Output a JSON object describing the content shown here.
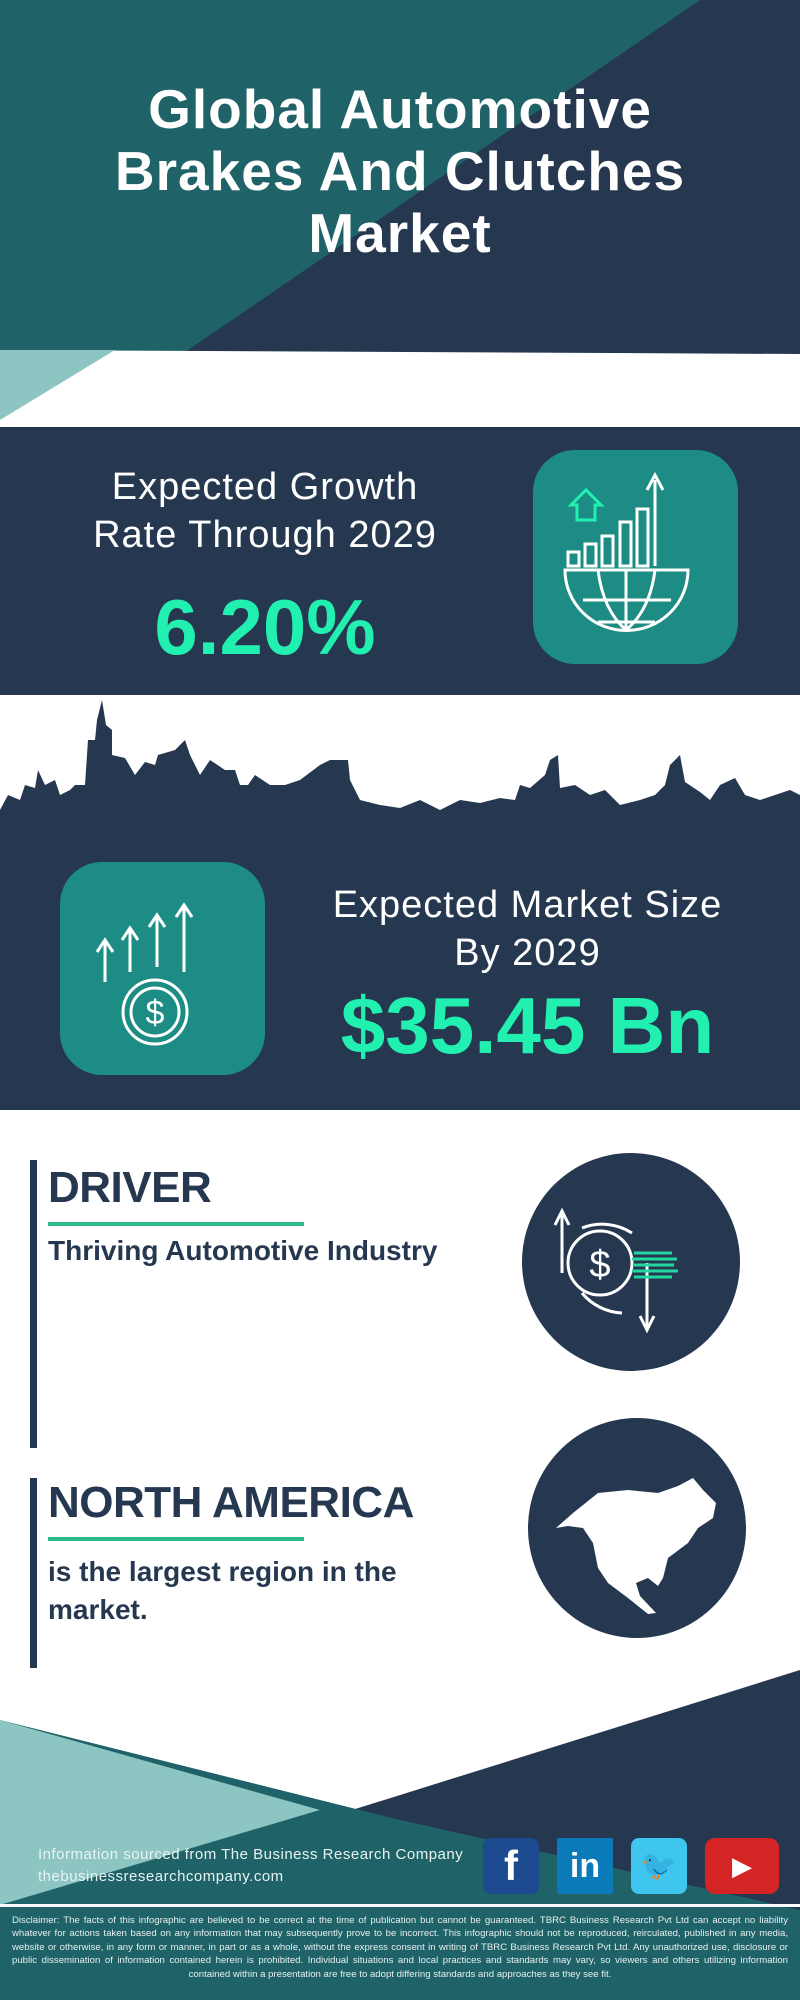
{
  "title": {
    "line1": "Global Automotive",
    "line2": "Brakes And Clutches",
    "line3": "Market"
  },
  "growth": {
    "label_line1": "Expected Growth",
    "label_line2": "Rate Through 2029",
    "value": "6.20%",
    "icon": "globe-growth-chart-icon"
  },
  "market_size": {
    "label_line1": "Expected Market Size",
    "label_line2": "By 2029",
    "value": "$35.45 Bn",
    "icon": "money-growth-arrows-icon"
  },
  "driver": {
    "heading": "DRIVER",
    "text": "Thriving Automotive Industry",
    "icon": "dollar-exchange-icon"
  },
  "region": {
    "heading": "NORTH AMERICA",
    "text_line1": "is the largest region in the",
    "text_line2": "market.",
    "icon": "north-america-map-icon"
  },
  "footer": {
    "source": "Information sourced from The Business Research Company",
    "website": "thebusinessresearchcompany.com",
    "social": [
      {
        "name": "facebook",
        "glyph": "f",
        "color": "#1b4a8f"
      },
      {
        "name": "linkedin",
        "glyph": "in",
        "color": "#0a7ab8"
      },
      {
        "name": "twitter",
        "glyph": "🐦",
        "color": "#3ec6ef"
      },
      {
        "name": "youtube",
        "glyph": "▶",
        "color": "#d52424"
      }
    ],
    "disclaimer": "Disclaimer: The facts of this infographic are believed to be correct at the time of publication but cannot be guaranteed. TBRC Business Research Pvt Ltd can accept no liability whatever for actions taken based on any information that may subsequently prove to be incorrect. This infographic should not be reproduced, reirculated, published in any media, website or otherwise, in any form or manner, in part or as a whole, without the express consent in writing of TBRC Business Research Pvt Ltd. Any unauthorized use, disclosure or public dissemination of information contained herein is prohibited. Individual situations and local practices and standards may vary, so viewers and others utilizing information contained within a presentation are free to adopt differing standards and approaches as they see fit."
  },
  "colors": {
    "navy": "#253850",
    "teal": "#1f6268",
    "light_teal": "#8cc5c2",
    "accent_green": "#22f0b0",
    "icon_teal": "#1d8c85"
  }
}
